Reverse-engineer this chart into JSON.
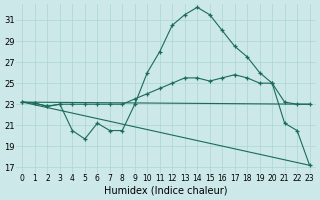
{
  "xlabel": "Humidex (Indice chaleur)",
  "x_ticks": [
    0,
    1,
    2,
    3,
    4,
    5,
    6,
    7,
    8,
    9,
    10,
    11,
    12,
    13,
    14,
    15,
    16,
    17,
    18,
    19,
    20,
    21,
    22,
    23
  ],
  "y_ticks": [
    17,
    19,
    21,
    23,
    25,
    27,
    29,
    31
  ],
  "xlim": [
    -0.5,
    23.5
  ],
  "ylim": [
    16.5,
    32.5
  ],
  "bg_color": "#cce8e8",
  "line_color": "#1a6b5a",
  "grid_color": "#aad4d4",
  "series": [
    {
      "x": [
        0,
        1,
        2,
        3,
        4,
        5,
        6,
        7,
        8,
        9,
        10,
        11,
        12,
        13,
        14,
        15,
        16,
        17,
        18,
        19,
        20,
        21,
        22,
        23
      ],
      "y": [
        23.2,
        23.1,
        22.8,
        23.0,
        20.5,
        19.7,
        21.2,
        20.5,
        20.5,
        23.0,
        26.0,
        28.0,
        30.5,
        31.5,
        32.2,
        31.5,
        30.0,
        28.5,
        27.5,
        26.0,
        25.0,
        21.2,
        20.5,
        17.2
      ],
      "markers": true
    },
    {
      "x": [
        0,
        1,
        2,
        3,
        4,
        5,
        6,
        7,
        8,
        9,
        10,
        11,
        12,
        13,
        14,
        15,
        16,
        17,
        18,
        19,
        20,
        21,
        22,
        23
      ],
      "y": [
        23.2,
        23.1,
        22.8,
        23.0,
        23.0,
        23.0,
        23.0,
        23.0,
        23.0,
        23.5,
        24.0,
        24.5,
        25.0,
        25.5,
        25.5,
        25.2,
        25.5,
        25.8,
        25.5,
        25.0,
        25.0,
        23.2,
        23.0,
        23.0
      ],
      "markers": true
    },
    {
      "x": [
        0,
        23
      ],
      "y": [
        23.2,
        17.2
      ],
      "markers": false
    },
    {
      "x": [
        0,
        23
      ],
      "y": [
        23.2,
        23.0
      ],
      "markers": false
    }
  ]
}
